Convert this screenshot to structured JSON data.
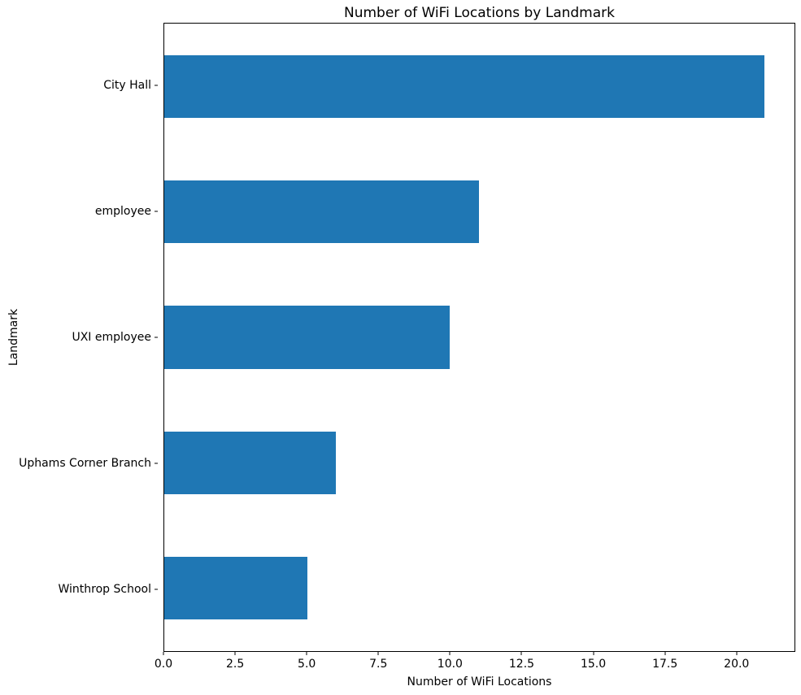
{
  "chart_data": {
    "type": "bar",
    "orientation": "horizontal",
    "title": "Number of WiFi Locations by Landmark",
    "xlabel": "Number of WiFi Locations",
    "ylabel": "Landmark",
    "categories": [
      "City Hall",
      "employee",
      "UXI employee",
      "Uphams Corner Branch",
      "Winthrop School"
    ],
    "values": [
      21,
      11,
      10,
      6,
      5
    ],
    "xlim": [
      0,
      22.05
    ],
    "xticks": [
      0.0,
      2.5,
      5.0,
      7.5,
      10.0,
      12.5,
      15.0,
      17.5,
      20.0
    ],
    "xtick_labels": [
      "0.0",
      "2.5",
      "5.0",
      "7.5",
      "10.0",
      "12.5",
      "15.0",
      "17.5",
      "20.0"
    ],
    "bar_color": "#1f77b4",
    "bar_height_fraction": 0.5,
    "grid": false,
    "legend": "none",
    "background_color": "#ffffff",
    "spine_color": "#000000",
    "text_color": "#000000"
  }
}
